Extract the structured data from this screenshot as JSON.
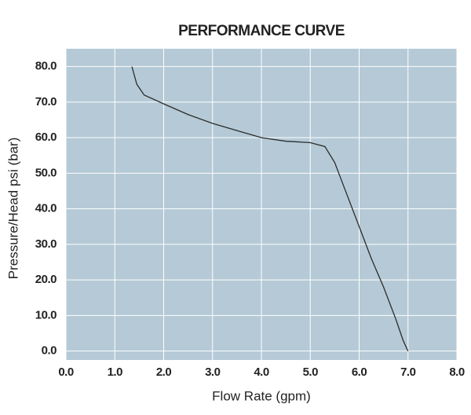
{
  "chart_data": {
    "type": "line",
    "title": "PERFORMANCE CURVE",
    "x_label": "Flow Rate (gpm)",
    "y_label": "Pressure/Head psi (bar)",
    "x": [
      1.35,
      1.45,
      1.6,
      2.0,
      2.5,
      3.0,
      3.5,
      4.0,
      4.5,
      5.0,
      5.3,
      5.5,
      5.75,
      6.0,
      6.25,
      6.5,
      6.75,
      6.9,
      7.0
    ],
    "series": [
      {
        "color": "#2b2b2b",
        "values": [
          80,
          75,
          72,
          69.5,
          66.5,
          64,
          62,
          60,
          59,
          58.6,
          57.5,
          53,
          44,
          35,
          26,
          18,
          9,
          3,
          0
        ]
      }
    ],
    "xlim": [
      0,
      8
    ],
    "ylim": [
      -2.5,
      85
    ],
    "xticks": [
      {
        "value": 0,
        "label": "0.0"
      },
      {
        "value": 1,
        "label": "1.0"
      },
      {
        "value": 2,
        "label": "2.0"
      },
      {
        "value": 3,
        "label": "3.0"
      },
      {
        "value": 4,
        "label": "4.0"
      },
      {
        "value": 5,
        "label": "5.0"
      },
      {
        "value": 6,
        "label": "6.0"
      },
      {
        "value": 7,
        "label": "7.0"
      },
      {
        "value": 8,
        "label": "8.0"
      }
    ],
    "yticks": [
      {
        "value": 0,
        "label": "0.0"
      },
      {
        "value": 10,
        "label": "10.0"
      },
      {
        "value": 20,
        "label": "20.0"
      },
      {
        "value": 30,
        "label": "30.0"
      },
      {
        "value": 40,
        "label": "40.0"
      },
      {
        "value": 50,
        "label": "50.0"
      },
      {
        "value": 60,
        "label": "60.0"
      },
      {
        "value": 70,
        "label": "70.0"
      },
      {
        "value": 80,
        "label": "80.0"
      }
    ],
    "grid": true,
    "background": "#b5cad6",
    "grid_color": "#ffffff"
  }
}
